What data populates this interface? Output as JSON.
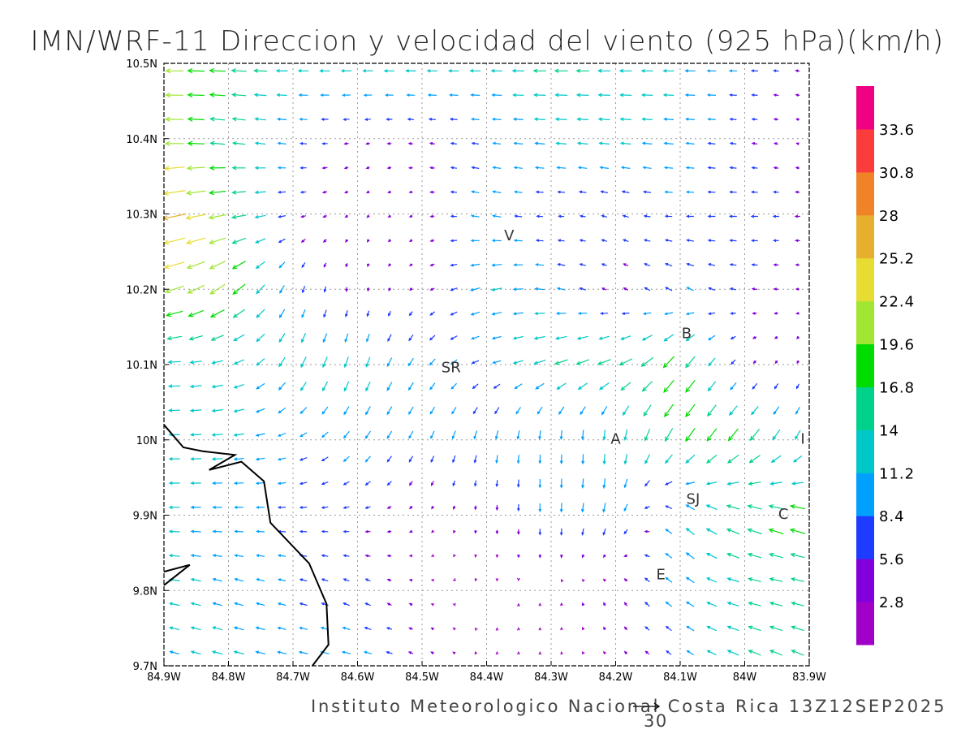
{
  "chart_data": {
    "type": "vector-field",
    "title": "IMN/WRF-11 Direccion y velocidad del viento (925 hPa)(km/h)",
    "footer": "Instituto Meteorologico Nacional Costa Rica 13Z12SEP2025",
    "reference_vector": {
      "value": 30,
      "label": "30"
    },
    "xlim": [
      -84.9,
      -83.9
    ],
    "ylim": [
      9.7,
      10.5
    ],
    "x_ticks": [
      -84.9,
      -84.8,
      -84.7,
      -84.6,
      -84.5,
      -84.4,
      -84.3,
      -84.2,
      -84.1,
      -84.0,
      -83.9
    ],
    "x_tick_labels": [
      "84.9W",
      "84.8W",
      "84.7W",
      "84.6W",
      "84.5W",
      "84.4W",
      "84.3W",
      "84.2W",
      "84.1W",
      "84W",
      "83.9W"
    ],
    "y_ticks": [
      9.7,
      9.8,
      9.9,
      10.0,
      10.1,
      10.2,
      10.3,
      10.4,
      10.5
    ],
    "y_tick_labels": [
      "9.7N",
      "9.8N",
      "9.9N",
      "10N",
      "10.1N",
      "10.2N",
      "10.3N",
      "10.4N",
      "10.5N"
    ],
    "grid": true,
    "colorbar": {
      "labels": [
        "2.8",
        "5.6",
        "8.4",
        "11.2",
        "14",
        "16.8",
        "19.6",
        "22.4",
        "25.2",
        "28",
        "30.8",
        "33.6"
      ],
      "thresholds": [
        2.8,
        5.6,
        8.4,
        11.2,
        14,
        16.8,
        19.6,
        22.4,
        25.2,
        28,
        30.8,
        33.6
      ],
      "colors": [
        "#a000c8",
        "#8200dc",
        "#1e3cff",
        "#00a0ff",
        "#00c8c8",
        "#00d28c",
        "#00dc00",
        "#a0e632",
        "#e6dc32",
        "#e6af2d",
        "#f08228",
        "#fa3c3c",
        "#f00082"
      ]
    },
    "cities": [
      {
        "label": "V",
        "lon": -84.365,
        "lat": 10.265
      },
      {
        "label": "B",
        "lon": -84.09,
        "lat": 10.135
      },
      {
        "label": "SR",
        "lon": -84.455,
        "lat": 10.09
      },
      {
        "label": "A",
        "lon": -84.2,
        "lat": 9.995
      },
      {
        "label": "I",
        "lon": -83.91,
        "lat": 9.995
      },
      {
        "label": "SJ",
        "lon": -84.08,
        "lat": 9.915
      },
      {
        "label": "C",
        "lon": -83.94,
        "lat": 9.895
      },
      {
        "label": "E",
        "lon": -84.13,
        "lat": 9.815
      }
    ],
    "wind_grid": {
      "lons": [
        -84.9,
        -84.8,
        -84.7,
        -84.6,
        -84.5,
        -84.4,
        -84.3,
        -84.2,
        -84.1,
        -84.0,
        -83.9
      ],
      "lats": [
        10.5,
        10.4,
        10.3,
        10.2,
        10.1,
        10.0,
        9.9,
        9.8,
        9.7
      ],
      "u_kmh": [
        [
          -20,
          -18,
          -12,
          -12,
          -12,
          -12,
          -15,
          -14,
          -12,
          -8,
          -4
        ],
        [
          -22,
          -15,
          -8,
          -4,
          -5,
          -8,
          -12,
          -12,
          -10,
          -6,
          -2
        ],
        [
          -28,
          -18,
          -6,
          -2,
          -3,
          -10,
          -6,
          -6,
          -8,
          -8,
          -5
        ],
        [
          -22,
          -16,
          -3,
          0,
          -3,
          -12,
          -10,
          -4,
          -8,
          -6,
          -3
        ],
        [
          -14,
          -12,
          -6,
          -4,
          -6,
          -8,
          -14,
          -15,
          -12,
          -3,
          -1
        ],
        [
          -12,
          -12,
          -8,
          -6,
          -4,
          -2,
          0,
          0,
          -10,
          -12,
          -5
        ],
        [
          -12,
          -10,
          -8,
          -6,
          -2,
          0,
          0,
          -3,
          -8,
          -16,
          -18
        ],
        [
          -12,
          -10,
          -8,
          -6,
          -2,
          0,
          0,
          -2,
          -8,
          -14,
          -14
        ],
        [
          -10,
          -12,
          -10,
          -10,
          -4,
          0,
          0,
          -2,
          -6,
          -14,
          -14
        ]
      ],
      "v_kmh": [
        [
          0,
          1,
          0,
          0,
          0,
          0,
          0,
          0,
          0,
          0,
          1
        ],
        [
          0,
          2,
          1,
          -1,
          1,
          1,
          1,
          1,
          1,
          1,
          1
        ],
        [
          -6,
          -3,
          -1,
          -2,
          -1,
          2,
          0,
          2,
          0,
          0,
          0
        ],
        [
          -6,
          -12,
          -8,
          -4,
          -2,
          -3,
          2,
          2,
          4,
          1,
          0
        ],
        [
          0,
          -3,
          -12,
          -12,
          -8,
          -2,
          -5,
          -6,
          -15,
          -3,
          -3
        ],
        [
          0,
          -1,
          -3,
          -8,
          -8,
          -10,
          -10,
          -12,
          -15,
          -14,
          -10
        ],
        [
          0,
          0,
          0,
          -1,
          -2,
          -4,
          -10,
          -10,
          8,
          6,
          5
        ],
        [
          2,
          3,
          2,
          3,
          1,
          -1,
          2,
          4,
          6,
          3,
          3
        ],
        [
          3,
          3,
          2,
          2,
          2,
          2,
          1,
          2,
          4,
          6,
          6
        ]
      ]
    },
    "coastline": [
      [
        -84.9,
        10.02
      ],
      [
        -84.87,
        9.99
      ],
      [
        -84.84,
        9.985
      ],
      [
        -84.79,
        9.98
      ],
      [
        -84.83,
        9.96
      ],
      [
        -84.78,
        9.971
      ],
      [
        -84.745,
        9.945
      ],
      [
        -84.735,
        9.89
      ],
      [
        -84.705,
        9.863
      ],
      [
        -84.675,
        9.836
      ],
      [
        -84.648,
        9.782
      ],
      [
        -84.645,
        9.728
      ],
      [
        -84.67,
        9.7
      ]
    ],
    "coastline2": [
      [
        -84.9,
        9.825
      ],
      [
        -84.86,
        9.834
      ],
      [
        -84.9,
        9.807
      ]
    ]
  }
}
